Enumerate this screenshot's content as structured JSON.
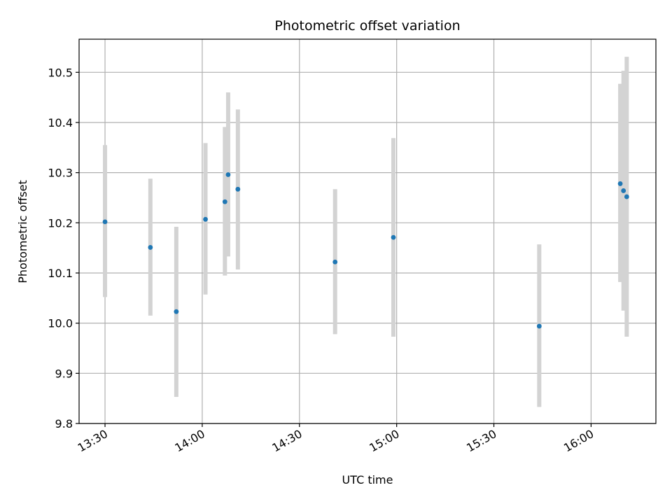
{
  "chart_data": {
    "type": "scatter",
    "title": "Photometric offset variation",
    "xlabel": "UTC time",
    "ylabel": "Photometric offset",
    "x_axis": {
      "kind": "time",
      "ticks": [
        "13:30",
        "14:00",
        "14:30",
        "15:00",
        "15:30",
        "16:00"
      ],
      "range": [
        "13:22",
        "16:20"
      ]
    },
    "y_axis": {
      "ticks": [
        "9.8",
        "9.9",
        "10.0",
        "10.1",
        "10.2",
        "10.3",
        "10.4",
        "10.5"
      ],
      "range": [
        9.8,
        10.566
      ]
    },
    "grid": true,
    "marker_color": "#1f77b4",
    "errorbar_color": "#d3d3d3",
    "points": [
      {
        "time": "13:30",
        "y": 10.202,
        "ylow": 10.052,
        "yhigh": 10.355
      },
      {
        "time": "13:44",
        "y": 10.151,
        "ylow": 10.015,
        "yhigh": 10.288
      },
      {
        "time": "13:52",
        "y": 10.023,
        "ylow": 9.853,
        "yhigh": 10.192
      },
      {
        "time": "14:01",
        "y": 10.207,
        "ylow": 10.057,
        "yhigh": 10.359
      },
      {
        "time": "14:07",
        "y": 10.242,
        "ylow": 10.095,
        "yhigh": 10.391
      },
      {
        "time": "14:08",
        "y": 10.296,
        "ylow": 10.133,
        "yhigh": 10.46
      },
      {
        "time": "14:11",
        "y": 10.267,
        "ylow": 10.107,
        "yhigh": 10.426
      },
      {
        "time": "14:41",
        "y": 10.122,
        "ylow": 9.978,
        "yhigh": 10.267
      },
      {
        "time": "14:59",
        "y": 10.171,
        "ylow": 9.973,
        "yhigh": 10.369
      },
      {
        "time": "15:44",
        "y": 9.994,
        "ylow": 9.833,
        "yhigh": 10.157
      },
      {
        "time": "16:09",
        "y": 10.278,
        "ylow": 10.082,
        "yhigh": 10.477
      },
      {
        "time": "16:10",
        "y": 10.264,
        "ylow": 10.025,
        "yhigh": 10.503
      },
      {
        "time": "16:11",
        "y": 10.252,
        "ylow": 9.973,
        "yhigh": 10.531
      }
    ]
  }
}
